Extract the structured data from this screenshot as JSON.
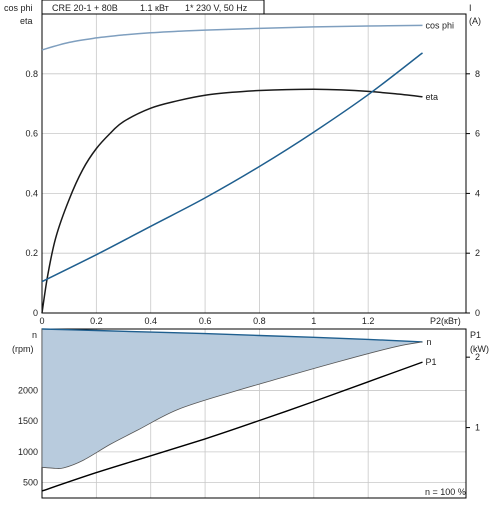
{
  "header": {
    "title": "CRE 20-1 + 80B",
    "power": "1.1 кВт",
    "supply": "1* 230 V, 50 Hz"
  },
  "colors": {
    "axis": "#000000",
    "grid": "#c8c8c8",
    "cos_phi": "#7f9fbf",
    "eta": "#1a1a1a",
    "current": "#1f5f8f",
    "speed_line": "#1f5f8f",
    "speed_fill": "#b8cbdd",
    "p1": "#000000"
  },
  "chart_data": [
    {
      "type": "line",
      "x_label": "P2(кВт)",
      "x_ticks": [
        "0",
        "0.2",
        "0.4",
        "0.6",
        "0.8",
        "1",
        "1.2"
      ],
      "xlim": [
        0,
        1.56
      ],
      "grid": true,
      "left_axis": {
        "label_lines": [
          "cos phi",
          "eta"
        ],
        "ylim": [
          0,
          1.0
        ],
        "ticks": [
          "0",
          "0.2",
          "0.4",
          "0.6",
          "0.8"
        ]
      },
      "right_axis": {
        "label_lines": [
          "I",
          "(A)"
        ],
        "ylim": [
          0,
          10
        ],
        "ticks": [
          "0",
          "2",
          "4",
          "6",
          "8"
        ]
      },
      "series": [
        {
          "name": "cos phi",
          "key": "cos_phi",
          "axis": "left",
          "x": [
            0,
            0.1,
            0.2,
            0.3,
            0.4,
            0.5,
            0.6,
            0.8,
            1.0,
            1.2,
            1.4
          ],
          "y": [
            0.88,
            0.905,
            0.92,
            0.93,
            0.937,
            0.942,
            0.946,
            0.952,
            0.957,
            0.96,
            0.962
          ]
        },
        {
          "name": "eta",
          "key": "eta",
          "axis": "left",
          "x": [
            0,
            0.02,
            0.05,
            0.1,
            0.15,
            0.2,
            0.25,
            0.3,
            0.4,
            0.5,
            0.6,
            0.7,
            0.8,
            0.9,
            1.0,
            1.1,
            1.2,
            1.3,
            1.4
          ],
          "y": [
            0,
            0.12,
            0.25,
            0.38,
            0.48,
            0.55,
            0.6,
            0.64,
            0.685,
            0.71,
            0.728,
            0.738,
            0.744,
            0.747,
            0.748,
            0.746,
            0.741,
            0.733,
            0.723
          ]
        },
        {
          "name": "I",
          "key": "current",
          "axis": "right",
          "x": [
            0,
            0.2,
            0.4,
            0.6,
            0.8,
            1.0,
            1.2,
            1.4
          ],
          "y": [
            1.05,
            1.95,
            2.9,
            3.85,
            4.9,
            6.05,
            7.3,
            8.7
          ]
        }
      ]
    },
    {
      "type": "area",
      "grid": true,
      "xlim": [
        0,
        1.56
      ],
      "left_axis": {
        "label_lines": [
          "n",
          "(rpm)"
        ],
        "ylim": [
          250,
          3000
        ],
        "ticks": [
          "500",
          "1000",
          "1500",
          "2000"
        ]
      },
      "right_axis": {
        "label_lines": [
          "P1",
          "(kW)"
        ],
        "ylim": [
          0.0,
          2.4
        ],
        "ticks": [
          "1",
          "2"
        ]
      },
      "annotation": "n   = 100 %",
      "series": [
        {
          "name": "n",
          "key": "speed",
          "axis": "left",
          "x": [
            0,
            0.2,
            0.4,
            0.6,
            0.8,
            1.0,
            1.2,
            1.4
          ],
          "y": [
            3000,
            2975,
            2950,
            2925,
            2895,
            2865,
            2830,
            2790
          ],
          "min_speed": {
            "x": [
              0,
              0.04,
              0.08,
              0.15,
              0.25,
              0.35,
              0.5,
              0.7,
              0.9,
              1.1,
              1.3,
              1.4
            ],
            "y": [
              750,
              735,
              740,
              860,
              1120,
              1350,
              1690,
              1975,
              2230,
              2480,
              2710,
              2790
            ]
          }
        },
        {
          "name": "P1",
          "key": "p1",
          "axis": "right",
          "x": [
            0,
            0.2,
            0.4,
            0.6,
            0.8,
            1.0,
            1.2,
            1.4
          ],
          "y": [
            0.1,
            0.36,
            0.6,
            0.84,
            1.1,
            1.37,
            1.65,
            1.93
          ]
        }
      ]
    }
  ]
}
